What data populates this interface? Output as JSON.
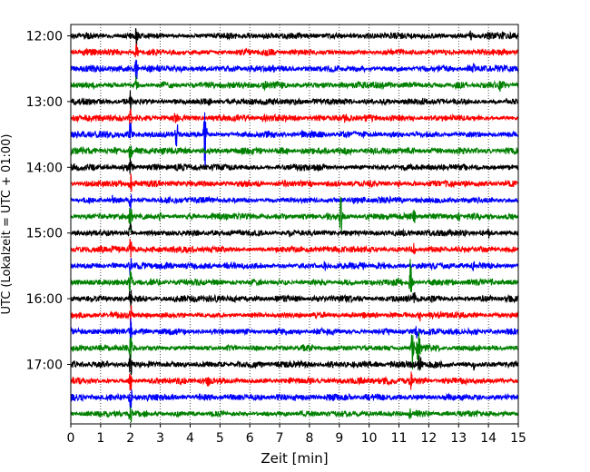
{
  "chart_data": {
    "type": "line",
    "title": "",
    "xlabel": "Zeit  [min]",
    "ylabel": "UTC (Lokalzeit = UTC + 01:00)",
    "xlim": [
      0,
      15
    ],
    "x_ticks": [
      "0",
      "1",
      "2",
      "3",
      "4",
      "5",
      "6",
      "7",
      "8",
      "9",
      "10",
      "11",
      "12",
      "13",
      "14",
      "15"
    ],
    "y_ticks": [
      "12:00",
      "13:00",
      "14:00",
      "15:00",
      "16:00",
      "17:00"
    ],
    "grid": "vertical dotted at every minute",
    "trace_interval_min": 15,
    "trace_start": "12:00",
    "trace_end": "17:45",
    "trace_colors": [
      "#000000",
      "#ff0000",
      "#0000ff",
      "#008000"
    ],
    "series": [
      {
        "start": "12:00",
        "color": "#000000",
        "events": [
          {
            "x": 2.2,
            "amp": 10
          },
          {
            "x": 13.4,
            "amp": 5
          },
          {
            "x": 14.0,
            "amp": 3
          }
        ]
      },
      {
        "start": "12:15",
        "color": "#ff0000",
        "events": [
          {
            "x": 2.2,
            "amp": 10
          },
          {
            "x": 8.0,
            "amp": 2
          }
        ]
      },
      {
        "start": "12:30",
        "color": "#0000ff",
        "events": [
          {
            "x": 2.2,
            "amp": 10
          },
          {
            "x": 13.5,
            "amp": 3
          }
        ]
      },
      {
        "start": "12:45",
        "color": "#008000",
        "events": [
          {
            "x": 2.2,
            "amp": 10
          },
          {
            "x": 6.5,
            "amp": 2
          },
          {
            "x": 14.4,
            "amp": 4
          }
        ]
      },
      {
        "start": "13:00",
        "color": "#000000",
        "events": [
          {
            "x": 2.0,
            "amp": 12
          },
          {
            "x": 11.8,
            "amp": 6
          }
        ]
      },
      {
        "start": "13:15",
        "color": "#ff0000",
        "events": [
          {
            "x": 2.0,
            "amp": 12
          },
          {
            "x": 3.5,
            "amp": 4
          },
          {
            "x": 9.2,
            "amp": 3
          }
        ]
      },
      {
        "start": "13:30",
        "color": "#0000ff",
        "events": [
          {
            "x": 2.0,
            "amp": 12
          },
          {
            "x": 3.55,
            "amp": 14
          },
          {
            "x": 4.5,
            "amp": 36
          }
        ]
      },
      {
        "start": "13:45",
        "color": "#008000",
        "events": [
          {
            "x": 2.0,
            "amp": 12
          },
          {
            "x": 1.5,
            "amp": 3
          }
        ]
      },
      {
        "start": "14:00",
        "color": "#000000",
        "events": [
          {
            "x": 2.0,
            "amp": 12
          }
        ]
      },
      {
        "start": "14:15",
        "color": "#ff0000",
        "events": [
          {
            "x": 2.0,
            "amp": 12
          },
          {
            "x": 11.0,
            "amp": 3
          }
        ]
      },
      {
        "start": "14:30",
        "color": "#0000ff",
        "events": [
          {
            "x": 2.0,
            "amp": 12
          },
          {
            "x": 1.4,
            "amp": 3
          }
        ]
      },
      {
        "start": "14:45",
        "color": "#008000",
        "events": [
          {
            "x": 2.0,
            "amp": 12
          },
          {
            "x": 9.05,
            "amp": 22
          },
          {
            "x": 3.0,
            "amp": 4
          },
          {
            "x": 11.5,
            "amp": 4
          },
          {
            "x": 13.0,
            "amp": 4
          }
        ]
      },
      {
        "start": "15:00",
        "color": "#000000",
        "events": [
          {
            "x": 2.0,
            "amp": 12
          },
          {
            "x": 14.0,
            "amp": 4
          }
        ]
      },
      {
        "start": "15:15",
        "color": "#ff0000",
        "events": [
          {
            "x": 2.0,
            "amp": 12
          },
          {
            "x": 11.5,
            "amp": 5
          }
        ]
      },
      {
        "start": "15:30",
        "color": "#0000ff",
        "events": [
          {
            "x": 2.0,
            "amp": 12
          },
          {
            "x": 8.5,
            "amp": 4
          },
          {
            "x": 13.5,
            "amp": 3
          }
        ]
      },
      {
        "start": "15:45",
        "color": "#008000",
        "events": [
          {
            "x": 2.0,
            "amp": 12
          },
          {
            "x": 11.4,
            "amp": 30
          }
        ]
      },
      {
        "start": "16:00",
        "color": "#000000",
        "events": [
          {
            "x": 2.0,
            "amp": 12
          },
          {
            "x": 11.5,
            "amp": 6
          }
        ]
      },
      {
        "start": "16:15",
        "color": "#ff0000",
        "events": [
          {
            "x": 2.0,
            "amp": 12
          },
          {
            "x": 11.7,
            "amp": 6
          }
        ]
      },
      {
        "start": "16:30",
        "color": "#0000ff",
        "events": [
          {
            "x": 2.0,
            "amp": 12
          },
          {
            "x": 11.6,
            "amp": 6
          }
        ]
      },
      {
        "start": "16:45",
        "color": "#008000",
        "events": [
          {
            "x": 2.0,
            "amp": 12
          },
          {
            "x": 11.45,
            "amp": 24
          },
          {
            "x": 11.65,
            "amp": 24
          }
        ]
      },
      {
        "start": "17:00",
        "color": "#000000",
        "events": [
          {
            "x": 2.0,
            "amp": 12
          },
          {
            "x": 11.7,
            "amp": 10
          },
          {
            "x": 13.5,
            "amp": 5
          }
        ]
      },
      {
        "start": "17:15",
        "color": "#ff0000",
        "events": [
          {
            "x": 2.0,
            "amp": 12
          },
          {
            "x": 4.6,
            "amp": 4
          },
          {
            "x": 11.4,
            "amp": 8
          }
        ]
      },
      {
        "start": "17:30",
        "color": "#0000ff",
        "events": [
          {
            "x": 2.0,
            "amp": 12
          },
          {
            "x": 7.5,
            "amp": 3
          }
        ]
      },
      {
        "start": "17:45",
        "color": "#008000",
        "events": [
          {
            "x": 2.0,
            "amp": 12
          },
          {
            "x": 11.4,
            "amp": 10
          }
        ]
      }
    ]
  }
}
